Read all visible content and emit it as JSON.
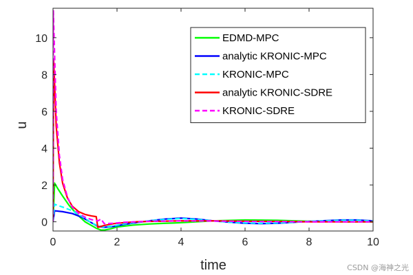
{
  "chart_data": {
    "type": "line",
    "xlabel": "time",
    "ylabel": "u",
    "xlim": [
      0,
      10
    ],
    "ylim": [
      -0.5,
      11.6
    ],
    "xticks": [
      0,
      2,
      4,
      6,
      8,
      10
    ],
    "yticks": [
      0,
      2,
      4,
      6,
      8,
      10
    ],
    "legend_position": "top-right",
    "grid": false,
    "series": [
      {
        "name": "EDMD-MPC",
        "color": "#00ff00",
        "dash": "solid",
        "x": [
          0,
          0.05,
          0.15,
          0.3,
          0.5,
          0.75,
          1.0,
          1.2,
          1.35,
          1.5,
          1.6,
          1.8,
          2.0,
          2.5,
          3.0,
          3.5,
          4.0,
          5.0,
          6.0,
          7.0,
          8.0,
          9.0,
          10.0
        ],
        "y": [
          0.0,
          2.1,
          1.8,
          1.4,
          0.9,
          0.4,
          0.0,
          -0.2,
          -0.35,
          -0.45,
          -0.45,
          -0.38,
          -0.28,
          -0.18,
          -0.12,
          -0.08,
          -0.05,
          0.05,
          0.1,
          0.08,
          0.03,
          0.0,
          0.0
        ]
      },
      {
        "name": "analytic KRONIC-MPC",
        "color": "#0000ff",
        "dash": "solid",
        "x": [
          0,
          0.05,
          0.3,
          0.6,
          0.9,
          1.2,
          1.4,
          1.6,
          1.9,
          2.2,
          2.6,
          3.0,
          3.5,
          4.0,
          4.5,
          5.0,
          5.5,
          6.0,
          6.5,
          7.0,
          7.5,
          8.0,
          8.5,
          9.0,
          9.5,
          10.0
        ],
        "y": [
          0.0,
          0.6,
          0.55,
          0.45,
          0.25,
          -0.05,
          -0.25,
          -0.3,
          -0.25,
          -0.15,
          -0.05,
          0.05,
          0.15,
          0.2,
          0.15,
          0.05,
          -0.02,
          -0.08,
          -0.1,
          -0.08,
          -0.03,
          0.02,
          0.06,
          0.1,
          0.1,
          0.05
        ]
      },
      {
        "name": "KRONIC-MPC",
        "color": "#00ffff",
        "dash": "dashed",
        "x": [
          0,
          0.05,
          0.3,
          0.6,
          0.9,
          1.2,
          1.4,
          1.6,
          1.9,
          2.2,
          2.6,
          3.0,
          3.5,
          4.0,
          4.5,
          5.0,
          5.5,
          6.0,
          6.5,
          7.0,
          7.5,
          8.0,
          8.5,
          9.0,
          9.5,
          10.0
        ],
        "y": [
          0.0,
          0.95,
          0.8,
          0.6,
          0.3,
          -0.05,
          -0.22,
          -0.28,
          -0.22,
          -0.12,
          -0.03,
          0.05,
          0.13,
          0.18,
          0.13,
          0.05,
          -0.02,
          -0.06,
          -0.08,
          -0.06,
          -0.02,
          0.02,
          0.05,
          0.08,
          0.08,
          0.04
        ]
      },
      {
        "name": "analytic KRONIC-SDRE",
        "color": "#ff0000",
        "dash": "solid",
        "x": [
          0,
          0.02,
          0.1,
          0.2,
          0.3,
          0.45,
          0.6,
          0.8,
          1.0,
          1.2,
          1.35,
          1.4,
          1.6,
          1.9,
          2.2,
          2.6,
          3.0,
          4.0,
          5.0,
          6.0,
          7.0,
          8.0,
          9.0,
          10.0
        ],
        "y": [
          0.0,
          8.8,
          5.2,
          3.2,
          2.1,
          1.3,
          0.85,
          0.55,
          0.4,
          0.32,
          0.28,
          -0.3,
          -0.2,
          -0.1,
          -0.05,
          0.0,
          0.02,
          0.05,
          0.05,
          0.03,
          0.02,
          0.0,
          0.0,
          0.0
        ]
      },
      {
        "name": "KRONIC-SDRE",
        "color": "#ff00ff",
        "dash": "dashed",
        "x": [
          0,
          0.01,
          0.1,
          0.2,
          0.3,
          0.45,
          0.6,
          0.8,
          1.0,
          1.2,
          1.4,
          1.5,
          1.6,
          1.9,
          2.2,
          2.6,
          3.0,
          4.0,
          5.0,
          6.0,
          7.0,
          8.0,
          9.0,
          10.0
        ],
        "y": [
          0.0,
          11.5,
          6.0,
          3.6,
          2.3,
          1.35,
          0.8,
          0.45,
          0.25,
          0.12,
          0.05,
          0.15,
          -0.1,
          -0.08,
          -0.03,
          0.0,
          0.03,
          0.05,
          0.04,
          0.02,
          0.01,
          0.0,
          0.0,
          0.0
        ]
      }
    ]
  },
  "watermark": "CSDN @海神之光"
}
